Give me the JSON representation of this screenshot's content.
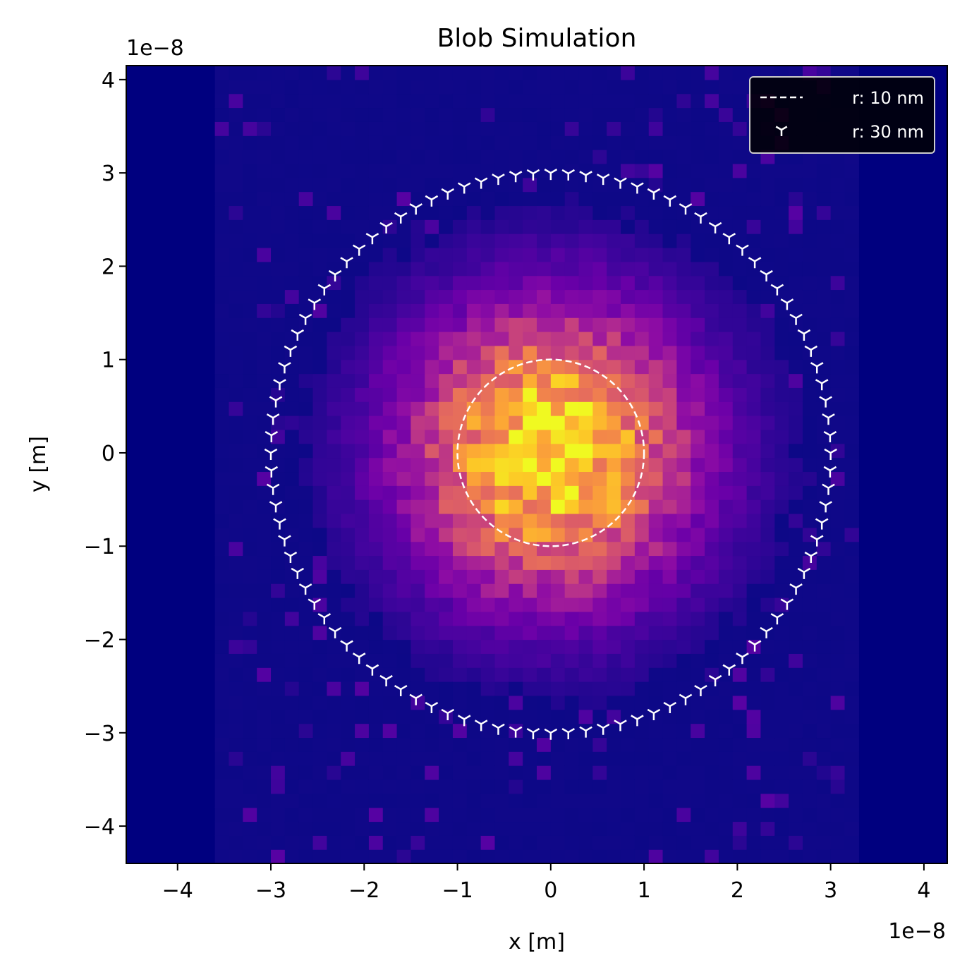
{
  "chart_data": {
    "type": "heatmap",
    "title": "Blob Simulation",
    "xlabel": "x [m]",
    "ylabel": "y [m]",
    "x_offset_label": "1e−8",
    "y_offset_label": "1e−8",
    "xlim": [
      -4.55e-08,
      4.25e-08
    ],
    "ylim": [
      -4.4e-08,
      4.15e-08
    ],
    "xticks": [
      -4e-08,
      -3e-08,
      -2e-08,
      -1e-08,
      0,
      1e-08,
      2e-08,
      3e-08,
      4e-08
    ],
    "xtick_labels": [
      "−4",
      "−3",
      "−2",
      "−1",
      "0",
      "1",
      "2",
      "3",
      "4"
    ],
    "yticks": [
      -4e-08,
      -3e-08,
      -2e-08,
      -1e-08,
      0,
      1e-08,
      2e-08,
      3e-08,
      4e-08
    ],
    "ytick_labels": [
      "−4",
      "−3",
      "−2",
      "−1",
      "0",
      "1",
      "2",
      "3",
      "4"
    ],
    "colormap": "plasma",
    "histogram": {
      "x_range": [
        -3.6e-08,
        3.3e-08
      ],
      "y_range": [
        -4.4e-08,
        4.15e-08
      ],
      "bins_x": 46,
      "bins_y": 57,
      "peak_center": [
        0,
        0
      ],
      "sigma": 1.05e-08,
      "background_level": 0.03
    },
    "series": [
      {
        "name": "r: 10 nm",
        "kind": "circle",
        "radius": 1e-08,
        "linestyle": "dashed",
        "color": "#ffffff"
      },
      {
        "name": "r: 30 nm",
        "kind": "circle",
        "radius": 3e-08,
        "marker": "tri_down",
        "n_markers": 100,
        "color": "#ffffff"
      }
    ],
    "legend": {
      "position": "upper right",
      "facecolor": "#000000",
      "edgecolor": "#cccccc"
    }
  },
  "colors": {
    "background_outside_hist": "#0c0786",
    "axes_face": "#00007f",
    "spine": "#000000"
  }
}
